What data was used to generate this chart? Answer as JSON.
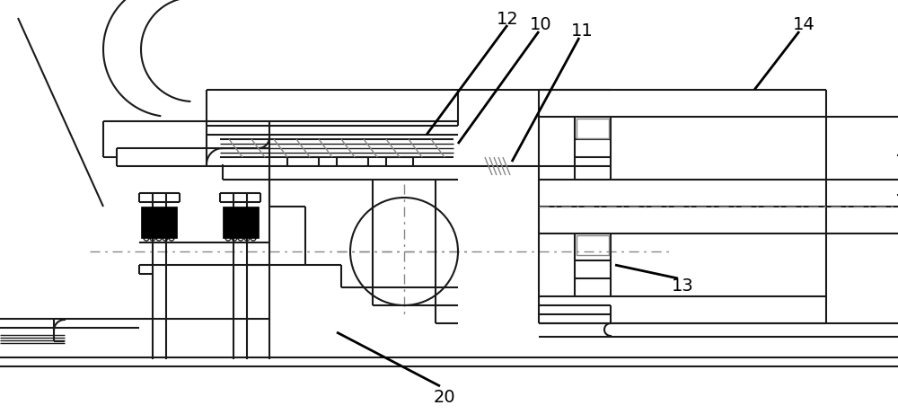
{
  "bg_color": "#ffffff",
  "lc": "#1a1a1a",
  "blk": "#000000",
  "gray": "#888888",
  "dash_color": "#888888",
  "figsize": [
    10.0,
    4.61
  ],
  "dpi": 100
}
